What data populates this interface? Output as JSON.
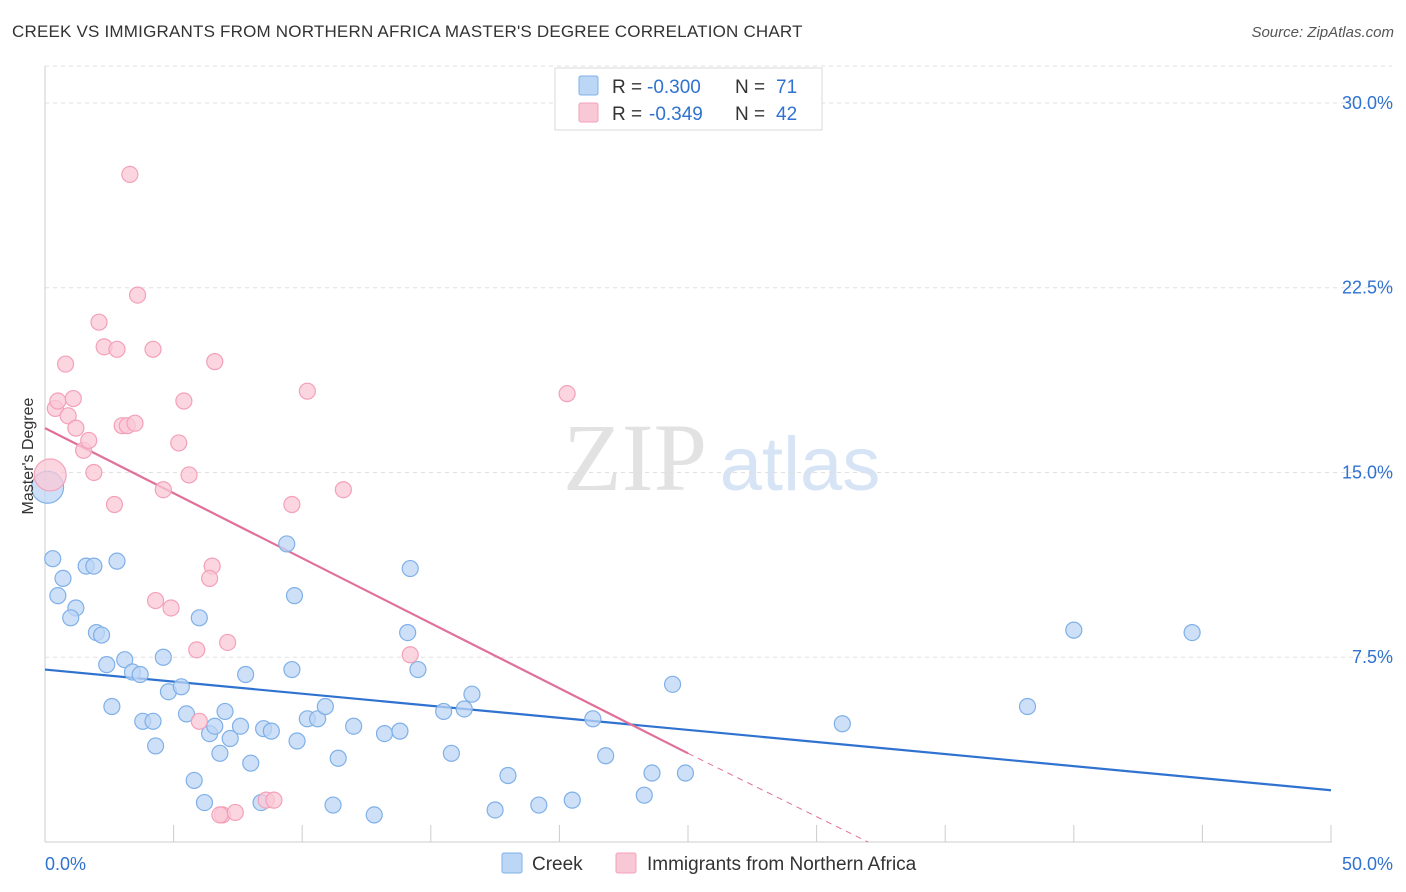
{
  "header": {
    "title": "CREEK VS IMMIGRANTS FROM NORTHERN AFRICA MASTER'S DEGREE CORRELATION CHART",
    "source": "Source: ZipAtlas.com"
  },
  "watermark": {
    "zip": "ZIP",
    "atlas": "atlas"
  },
  "legend": {
    "r_label": "R =",
    "n_label": "N =",
    "rows": [
      {
        "r": "-0.300",
        "n": "71",
        "color": "#7fb0e8"
      },
      {
        "r": "-0.349",
        "n": "42",
        "color": "#f4a0b8"
      }
    ]
  },
  "chart_data": {
    "type": "scatter",
    "title": "CREEK VS IMMIGRANTS FROM NORTHERN AFRICA MASTER'S DEGREE CORRELATION CHART",
    "xlabel": "",
    "ylabel": "Master's Degree",
    "xlim": [
      0,
      50
    ],
    "ylim": [
      0,
      31.5
    ],
    "x_tick_labels": [
      {
        "value": 0,
        "label": "0.0%"
      },
      {
        "value": 50,
        "label": "50.0%"
      }
    ],
    "y_ticks": [
      {
        "value": 7.5,
        "label": "7.5%"
      },
      {
        "value": 15,
        "label": "15.0%"
      },
      {
        "value": 22.5,
        "label": "22.5%"
      },
      {
        "value": 30,
        "label": "30.0%"
      }
    ],
    "x_minor_ticks": [
      0,
      5,
      10,
      15,
      20,
      25,
      30,
      35,
      40,
      45,
      50
    ],
    "grid": true,
    "series": [
      {
        "name": "Creek",
        "color": "#7fb0e8",
        "fill": "#bcd6f5",
        "r": -0.3,
        "n": 71,
        "trend": {
          "x0": 0,
          "y0": 7.0,
          "x1": 50,
          "y1": 2.1,
          "color": "#2f72d0"
        },
        "points": [
          [
            0.1,
            14.4
          ],
          [
            0.3,
            11.5
          ],
          [
            0.7,
            10.7
          ],
          [
            0.5,
            10.0
          ],
          [
            1.2,
            9.5
          ],
          [
            1.0,
            9.1
          ],
          [
            1.6,
            11.2
          ],
          [
            1.9,
            11.2
          ],
          [
            2.8,
            11.4
          ],
          [
            2.0,
            8.5
          ],
          [
            2.2,
            8.4
          ],
          [
            2.4,
            7.2
          ],
          [
            3.1,
            7.4
          ],
          [
            3.4,
            6.9
          ],
          [
            3.7,
            6.8
          ],
          [
            4.6,
            7.5
          ],
          [
            4.8,
            6.1
          ],
          [
            5.3,
            6.3
          ],
          [
            2.6,
            5.5
          ],
          [
            3.8,
            4.9
          ],
          [
            4.2,
            4.9
          ],
          [
            5.5,
            5.2
          ],
          [
            6.0,
            9.1
          ],
          [
            6.4,
            4.4
          ],
          [
            6.6,
            4.7
          ],
          [
            7.0,
            5.3
          ],
          [
            7.2,
            4.2
          ],
          [
            7.6,
            4.7
          ],
          [
            7.8,
            6.8
          ],
          [
            6.8,
            3.6
          ],
          [
            8.0,
            3.2
          ],
          [
            8.5,
            4.6
          ],
          [
            8.8,
            4.5
          ],
          [
            9.6,
            7.0
          ],
          [
            9.4,
            12.1
          ],
          [
            9.7,
            10.0
          ],
          [
            9.8,
            4.1
          ],
          [
            10.2,
            5.0
          ],
          [
            10.6,
            5.0
          ],
          [
            10.9,
            5.5
          ],
          [
            11.4,
            3.4
          ],
          [
            11.2,
            1.5
          ],
          [
            12.0,
            4.7
          ],
          [
            12.8,
            1.1
          ],
          [
            13.2,
            4.4
          ],
          [
            13.8,
            4.5
          ],
          [
            14.1,
            8.5
          ],
          [
            14.5,
            7.0
          ],
          [
            14.2,
            11.1
          ],
          [
            15.5,
            5.3
          ],
          [
            15.8,
            3.6
          ],
          [
            16.3,
            5.4
          ],
          [
            16.6,
            6.0
          ],
          [
            4.3,
            3.9
          ],
          [
            5.8,
            2.5
          ],
          [
            6.2,
            1.6
          ],
          [
            8.4,
            1.6
          ],
          [
            17.5,
            1.3
          ],
          [
            18.0,
            2.7
          ],
          [
            19.2,
            1.5
          ],
          [
            20.5,
            1.7
          ],
          [
            21.3,
            5.0
          ],
          [
            21.8,
            3.5
          ],
          [
            23.3,
            1.9
          ],
          [
            23.6,
            2.8
          ],
          [
            24.4,
            6.4
          ],
          [
            24.9,
            2.8
          ],
          [
            31.0,
            4.8
          ],
          [
            38.2,
            5.5
          ],
          [
            40.0,
            8.6
          ],
          [
            44.6,
            8.5
          ]
        ]
      },
      {
        "name": "Immigrants from Northern Africa",
        "color": "#f4a0b8",
        "fill": "#f9c8d7",
        "r": -0.349,
        "n": 42,
        "trend": {
          "x0": 0,
          "y0": 16.8,
          "x1": 25.0,
          "y1": 3.6,
          "color": "#e0709a"
        },
        "trend_dashed": {
          "x0": 25.0,
          "y0": 3.6,
          "x1": 32.0,
          "y1": 0.0
        },
        "points": [
          [
            0.2,
            14.9
          ],
          [
            0.4,
            17.6
          ],
          [
            0.5,
            17.9
          ],
          [
            0.8,
            19.4
          ],
          [
            0.9,
            17.3
          ],
          [
            1.1,
            18.0
          ],
          [
            1.2,
            16.8
          ],
          [
            1.5,
            15.9
          ],
          [
            1.7,
            16.3
          ],
          [
            1.9,
            15.0
          ],
          [
            2.1,
            21.1
          ],
          [
            2.3,
            20.1
          ],
          [
            2.8,
            20.0
          ],
          [
            2.7,
            13.7
          ],
          [
            3.0,
            16.9
          ],
          [
            3.2,
            16.9
          ],
          [
            3.5,
            17.0
          ],
          [
            3.6,
            22.2
          ],
          [
            3.3,
            27.1
          ],
          [
            4.2,
            20.0
          ],
          [
            4.3,
            9.8
          ],
          [
            4.6,
            14.3
          ],
          [
            4.9,
            9.5
          ],
          [
            5.2,
            16.2
          ],
          [
            5.4,
            17.9
          ],
          [
            5.6,
            14.9
          ],
          [
            5.9,
            7.8
          ],
          [
            6.5,
            11.2
          ],
          [
            6.4,
            10.7
          ],
          [
            6.6,
            19.5
          ],
          [
            7.1,
            8.1
          ],
          [
            6.9,
            1.1
          ],
          [
            6.8,
            1.1
          ],
          [
            7.4,
            1.2
          ],
          [
            8.6,
            1.7
          ],
          [
            8.9,
            1.7
          ],
          [
            9.6,
            13.7
          ],
          [
            10.2,
            18.3
          ],
          [
            11.6,
            14.3
          ],
          [
            14.2,
            7.6
          ],
          [
            20.3,
            18.2
          ],
          [
            6.0,
            4.9
          ]
        ]
      }
    ]
  },
  "bottom_legend": [
    {
      "label": "Creek",
      "color": "#7fb0e8"
    },
    {
      "label": "Immigrants from Northern Africa",
      "color": "#f4a0b8"
    }
  ]
}
